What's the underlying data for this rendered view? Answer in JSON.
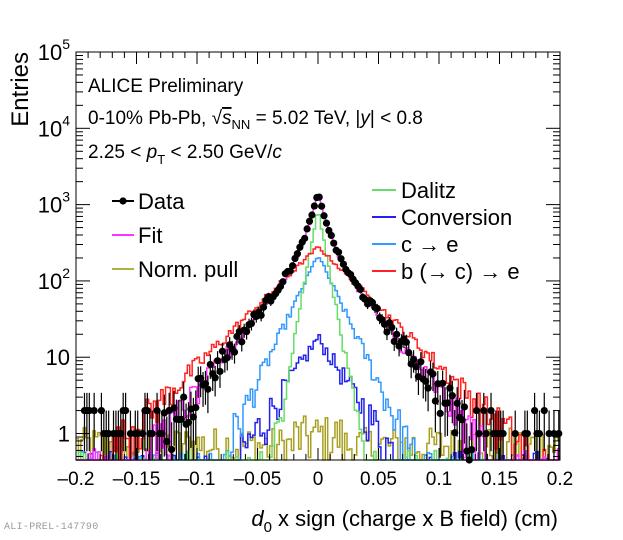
{
  "chart_data": {
    "type": "line",
    "title": "",
    "xlabel": "d0 x sign (charge x B field) (cm)",
    "xlabel_parts": {
      "var": "d",
      "sub": "0",
      "rest": " x sign (charge x B field) (cm)"
    },
    "ylabel": "Entries",
    "xlim": [
      -0.2,
      0.2
    ],
    "ylim": [
      0.45,
      100000
    ],
    "yscale": "log",
    "grid": false,
    "x_ticks": [
      "–0.2",
      "–0.15",
      "–0.1",
      "–0.05",
      "0",
      "0.05",
      "0.1",
      "0.15",
      "0.2"
    ],
    "x_tick_values": [
      -0.2,
      -0.15,
      -0.1,
      -0.05,
      0,
      0.05,
      0.1,
      0.15,
      0.2
    ],
    "y_ticks": [
      {
        "value": 1,
        "base": "1",
        "exp": ""
      },
      {
        "value": 10,
        "base": "10",
        "exp": ""
      },
      {
        "value": 100,
        "base": "10",
        "exp": "2"
      },
      {
        "value": 1000,
        "base": "10",
        "exp": "3"
      },
      {
        "value": 10000,
        "base": "10",
        "exp": "4"
      },
      {
        "value": 100000,
        "base": "10",
        "exp": "5"
      }
    ],
    "annotations": [
      {
        "text": "ALICE Preliminary"
      },
      {
        "text": "0-10% Pb-Pb, √s_NN = 5.02 TeV, |y| < 0.8",
        "parts": {
          "a": "0-10% Pb-Pb, ",
          "sqrt": "√",
          "s": "s",
          "sub": "NN",
          "b": " = 5.02 TeV, |",
          "y": "y",
          "c": "| < 0.8"
        }
      },
      {
        "text": "2.25 < pT < 2.50 GeV/c",
        "parts": {
          "a": "2.25 < ",
          "p": "p",
          "sub": "T",
          "b": " < 2.50 GeV/",
          "c": "c"
        }
      }
    ],
    "legend_left": {
      "placement": "top-left",
      "entries": [
        {
          "label": "Data",
          "color": "#000000",
          "marker": "circle-errorbar"
        },
        {
          "label": "Fit",
          "color": "#ff33ff",
          "marker": "line"
        },
        {
          "label": "Norm. pull",
          "color": "#b0b040",
          "marker": "line"
        }
      ]
    },
    "legend_right": {
      "placement": "top-right",
      "entries": [
        {
          "label": "Dalitz",
          "color": "#66dd66"
        },
        {
          "label": "Conversion",
          "color": "#2222ee"
        },
        {
          "label": "c → e",
          "color": "#3399ff"
        },
        {
          "label": "b (→ c) → e",
          "color": "#ff2222"
        }
      ]
    },
    "series": [
      {
        "name": "Data",
        "color": "#000000",
        "kind": "points",
        "shape": {
          "peak_x": 0.0,
          "peak": 1400,
          "widths": [
            [
              0.006,
              0.75
            ],
            [
              0.022,
              0.25
            ]
          ],
          "floor": 1.0,
          "floor_to": 0.17
        }
      },
      {
        "name": "Fit",
        "color": "#ff33ff",
        "kind": "step",
        "shape": {
          "peak_x": 0.0,
          "peak": 1350,
          "widths": [
            [
              0.006,
              0.75
            ],
            [
              0.022,
              0.25
            ]
          ],
          "floor": 0.6,
          "floor_to": 0.18
        }
      },
      {
        "name": "Dalitz",
        "color": "#66dd66",
        "kind": "step",
        "shape": {
          "peak_x": 0.0,
          "peak": 900,
          "widths": [
            [
              0.005,
              1.0
            ]
          ],
          "floor": 0.5,
          "floor_to": 0.11
        }
      },
      {
        "name": "Conversion",
        "color": "#2222ee",
        "kind": "step",
        "shape": {
          "peak_x": 0.0,
          "peak": 18,
          "widths": [
            [
              0.018,
              1.0
            ]
          ],
          "floor": 0.5,
          "floor_to": 0.1
        }
      },
      {
        "name": "c → e",
        "color": "#3399ff",
        "kind": "step",
        "shape": {
          "peak_x": 0.0,
          "peak": 220,
          "widths": [
            [
              0.013,
              1.0
            ]
          ],
          "floor": 0.5,
          "floor_to": 0.1
        }
      },
      {
        "name": "b (→ c) → e",
        "color": "#ff2222",
        "kind": "step",
        "shape": {
          "peak_x": 0.0,
          "peak": 280,
          "widths": [
            [
              0.028,
              1.0
            ]
          ],
          "floor": 0.55,
          "floor_to": 0.2
        }
      },
      {
        "name": "Norm. pull",
        "color": "#a8a020",
        "kind": "step",
        "shape": {
          "peak_x": 0.0,
          "peak": 0.9,
          "widths": [
            [
              0.5,
              1.0
            ]
          ],
          "floor": 0.5,
          "floor_to": 0.2
        }
      }
    ]
  },
  "footer": {
    "watermark": "ALI-PREL-147790"
  }
}
